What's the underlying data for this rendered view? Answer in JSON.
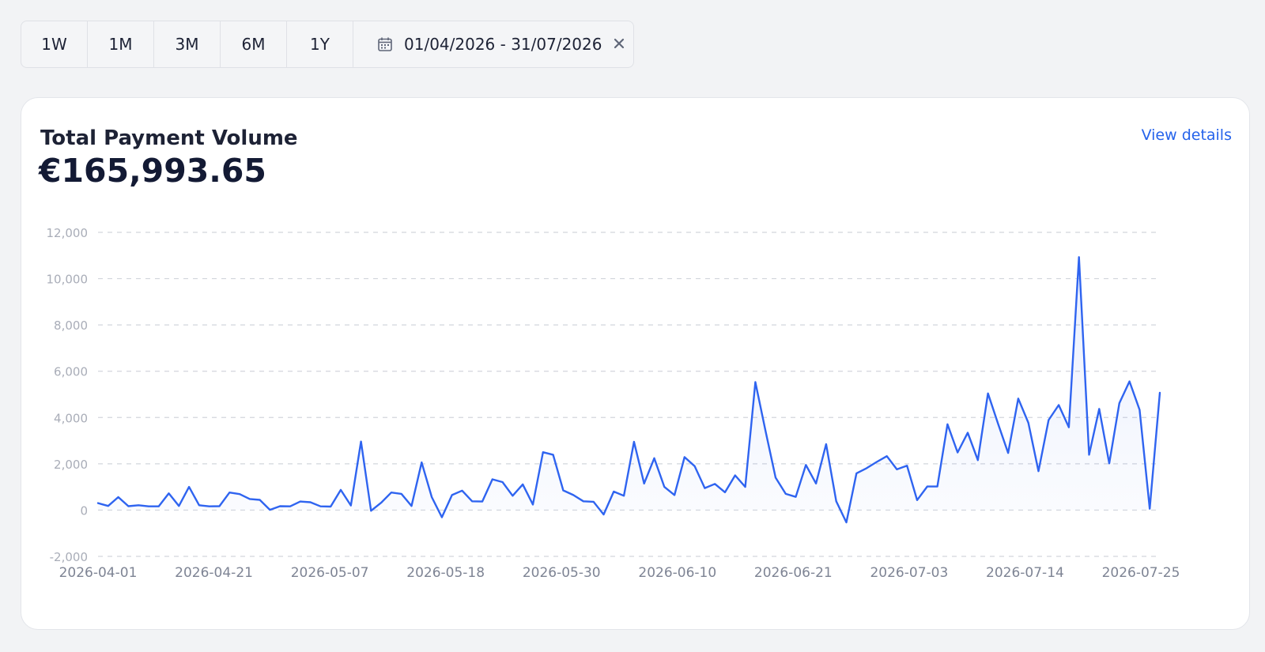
{
  "range_buttons": [
    "1W",
    "1M",
    "3M",
    "6M",
    "1Y"
  ],
  "date_range": "01/04/2026 - 31/07/2026",
  "icons": {
    "calendar": "calendar-icon",
    "clear": "close-icon"
  },
  "card": {
    "title": "Total Payment Volume",
    "value": "€165,993.65",
    "link": "View details"
  },
  "colors": {
    "accent": "#2563eb",
    "line": "#2f64f0",
    "background": "#f2f3f5"
  },
  "chart_data": {
    "type": "area",
    "ylim": [
      -2000,
      12000
    ],
    "yticks": [
      -2000,
      0,
      2000,
      4000,
      6000,
      8000,
      10000,
      12000
    ],
    "ytick_labels": [
      "-2,000",
      "0",
      "2,000",
      "4,000",
      "6,000",
      "8,000",
      "10,000",
      "12,000"
    ],
    "xtick_labels": [
      "2026-04-01",
      "2026-04-21",
      "2026-05-07",
      "2026-05-18",
      "2026-05-30",
      "2026-06-10",
      "2026-06-21",
      "2026-07-03",
      "2026-07-14",
      "2026-07-25"
    ],
    "grid": "horizontal-dashed",
    "series": [
      {
        "values": [
          300,
          180,
          560,
          170,
          210,
          160,
          160,
          720,
          180,
          1000,
          210,
          160,
          170,
          760,
          690,
          480,
          440,
          10,
          170,
          160,
          370,
          340,
          160,
          150,
          870,
          200,
          2960,
          -30,
          320,
          760,
          700,
          180,
          2060,
          560,
          -310,
          650,
          840,
          380,
          370,
          1330,
          1210,
          620,
          1110,
          240,
          2500,
          2390,
          850,
          650,
          380,
          360,
          -190,
          800,
          620,
          2950,
          1150,
          2240,
          1000,
          650,
          2290,
          1900,
          950,
          1130,
          770,
          1500,
          1000,
          5530,
          3430,
          1400,
          700,
          570,
          1950,
          1150,
          2850,
          380,
          -530,
          1590,
          1810,
          2080,
          2330,
          1760,
          1920,
          430,
          1020,
          1020,
          3710,
          2490,
          3340,
          2160,
          5040,
          3730,
          2470,
          4820,
          3770,
          1680,
          3890,
          4540,
          3580,
          10930,
          2390,
          4370,
          2020,
          4620,
          5560,
          4330,
          60,
          5070
        ]
      }
    ]
  }
}
